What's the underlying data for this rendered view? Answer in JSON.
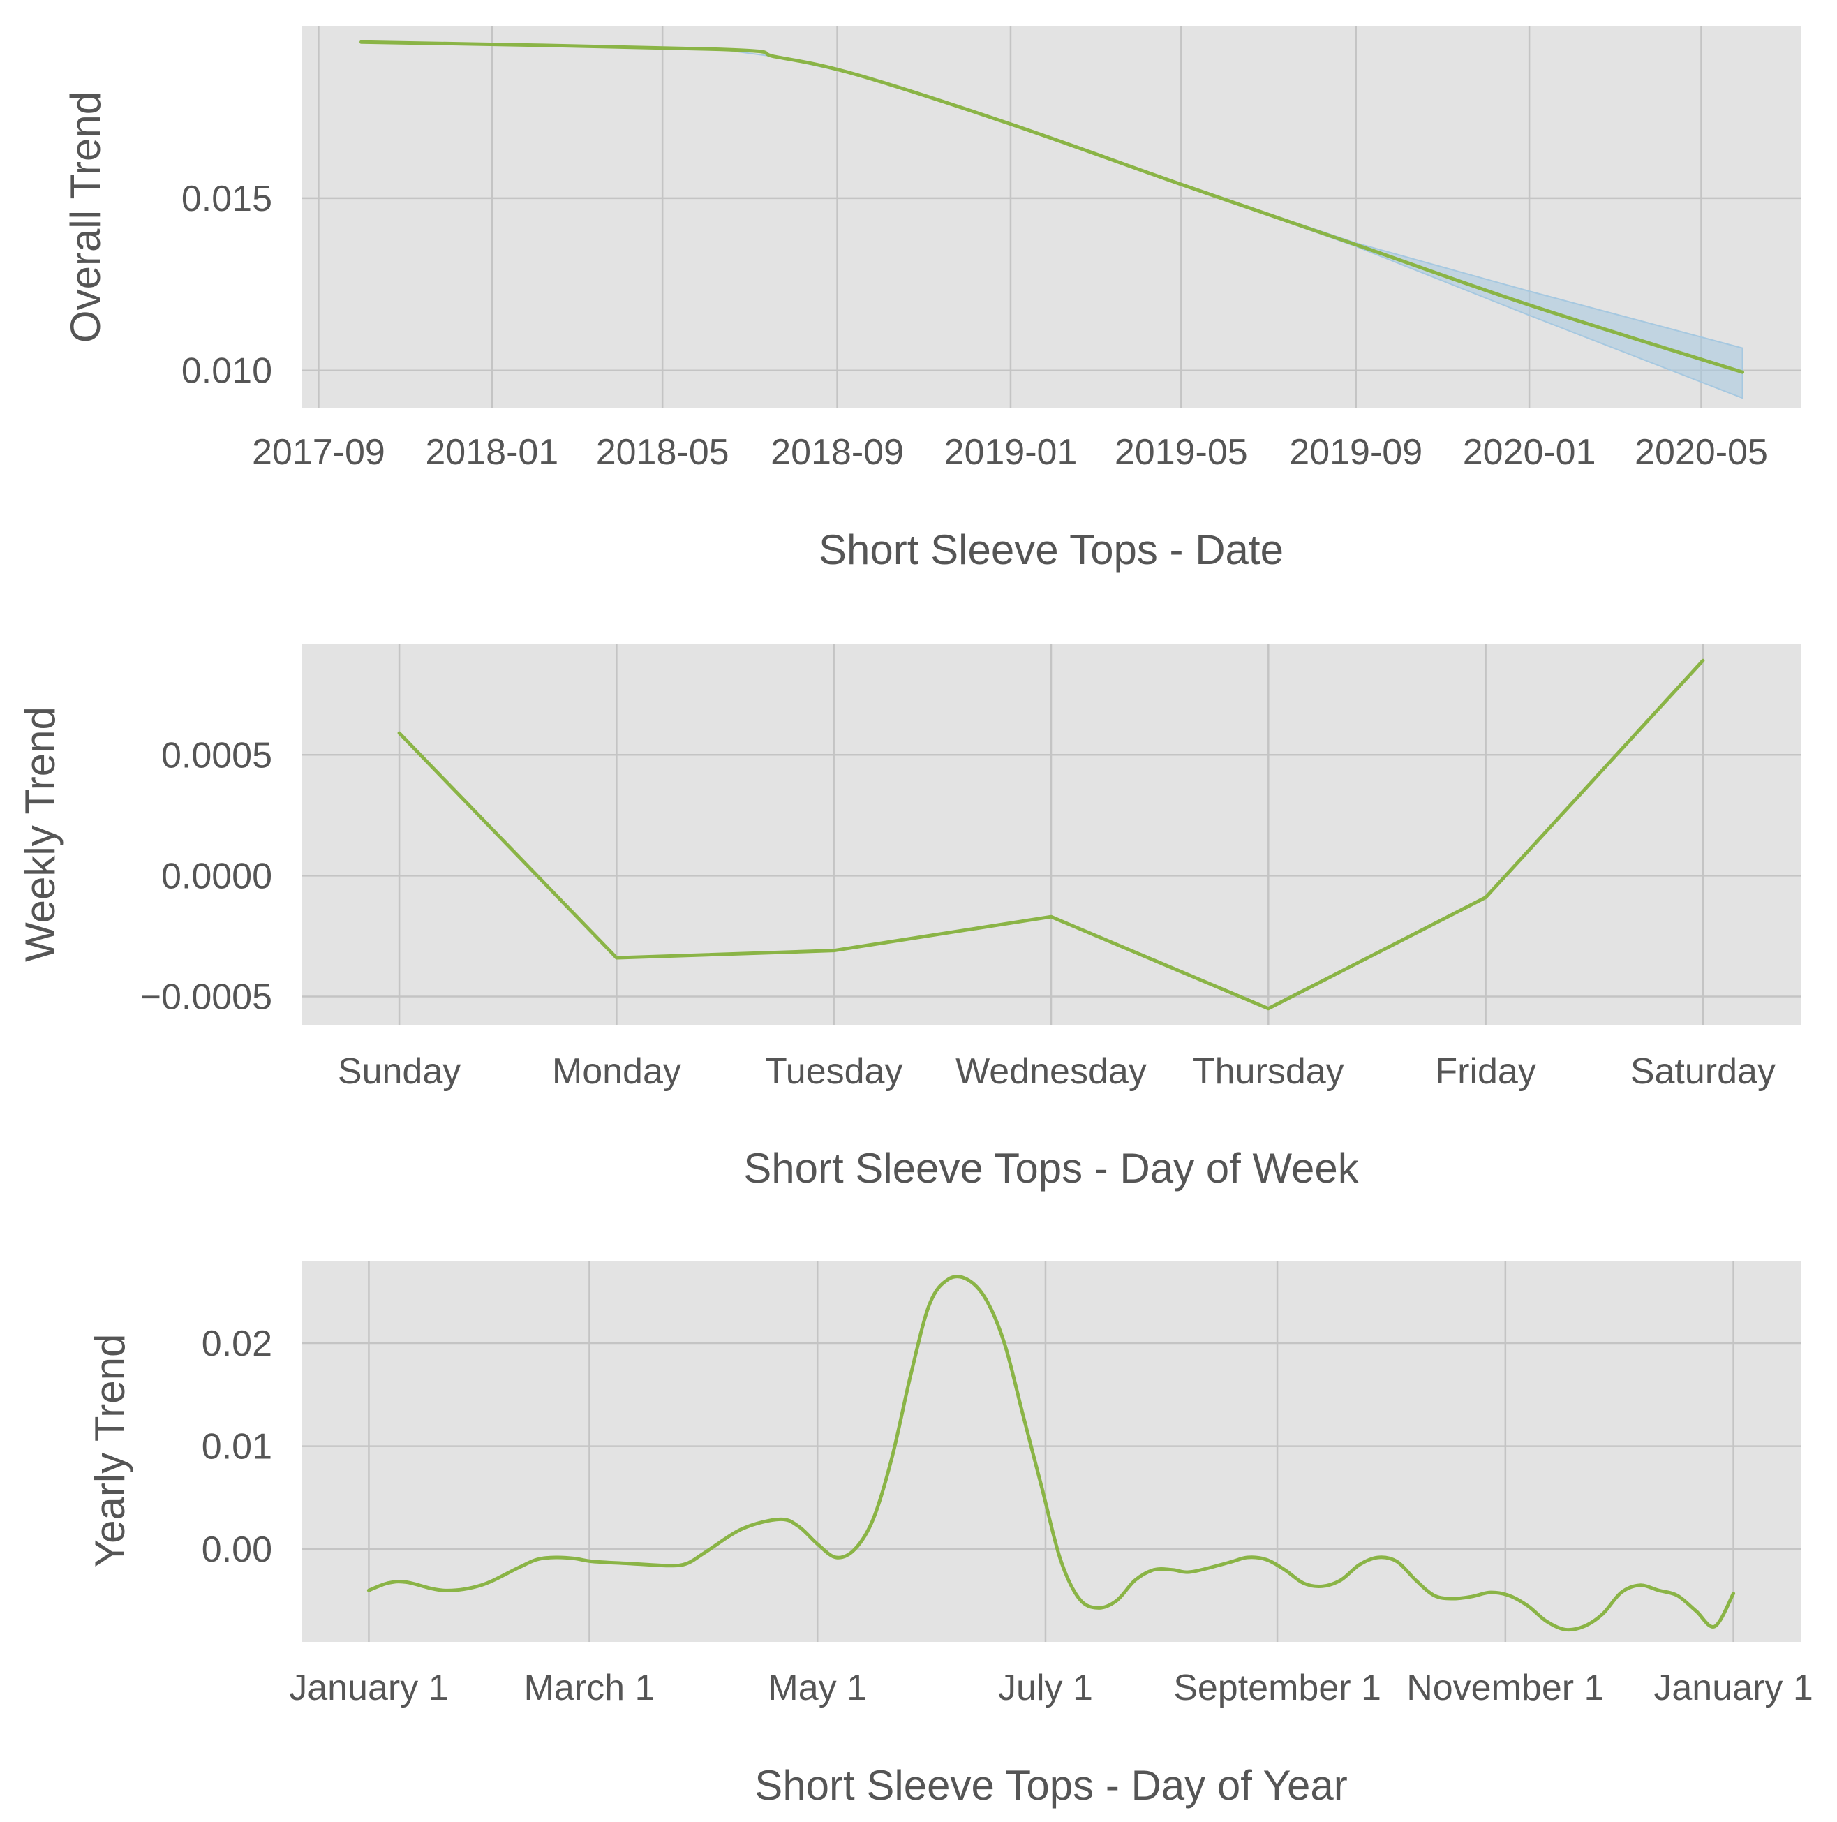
{
  "chart_data": [
    {
      "type": "line",
      "xlabel": "Short Sleeve Tops - Date",
      "ylabel": "Overall Trend",
      "x_ticks": [
        "2017-09",
        "2018-01",
        "2018-05",
        "2018-09",
        "2019-01",
        "2019-05",
        "2019-09",
        "2020-01",
        "2020-05"
      ],
      "y_ticks": [
        "0.010",
        "0.015"
      ],
      "ylim": [
        0.0089,
        0.02
      ],
      "xlim": [
        "2017-08-20",
        "2020-07-10"
      ],
      "grid": true,
      "series": [
        {
          "color": "#8ab446",
          "x": [
            "2017-10-01",
            "2018-06-10",
            "2018-07-20",
            "2018-09-15",
            "2019-01-01",
            "2019-05-01",
            "2019-09-01",
            "2020-01-01",
            "2020-05-30"
          ],
          "y": [
            0.01953,
            0.01932,
            0.0191,
            0.01858,
            0.01715,
            0.0154,
            0.01365,
            0.0119,
            0.00995
          ],
          "band_lower": [
            0.01953,
            0.01932,
            0.0191,
            0.01858,
            0.01715,
            0.0154,
            0.0136,
            0.0116,
            0.0092
          ],
          "band_upper": [
            0.01953,
            0.01932,
            0.0191,
            0.01858,
            0.01715,
            0.0154,
            0.0137,
            0.0123,
            0.01065
          ],
          "band_color": "#a6c8e0"
        }
      ]
    },
    {
      "type": "line",
      "xlabel": "Short Sleeve Tops - Day of Week",
      "ylabel": "Weekly Trend",
      "categories": [
        "Sunday",
        "Monday",
        "Tuesday",
        "Wednesday",
        "Thursday",
        "Friday",
        "Saturday"
      ],
      "y_ticks": [
        "0.0005",
        "0.0000",
        "−0.0005"
      ],
      "ylim": [
        -0.00062,
        0.00096
      ],
      "grid": true,
      "series": [
        {
          "color": "#8ab446",
          "values": [
            0.00059,
            -0.00034,
            -0.00031,
            -0.00017,
            -0.00055,
            -9e-05,
            0.00089
          ]
        }
      ]
    },
    {
      "type": "line",
      "xlabel": "Short Sleeve Tops - Day of Year",
      "ylabel": "Yearly Trend",
      "x_ticks": [
        "January 1",
        "March 1",
        "May 1",
        "July 1",
        "September 1",
        "November 1",
        "January 1"
      ],
      "x_tick_days": [
        0,
        59,
        120,
        181,
        243,
        304,
        365
      ],
      "y_ticks": [
        "0.02",
        "0.01",
        "0.00"
      ],
      "ylim": [
        -0.009,
        0.028
      ],
      "xlim": [
        -18,
        383
      ],
      "grid": true,
      "series": [
        {
          "color": "#8ab446",
          "x": [
            0,
            5,
            10,
            20,
            30,
            40,
            45,
            50,
            55,
            60,
            70,
            80,
            85,
            90,
            100,
            110,
            115,
            120,
            125,
            130,
            135,
            140,
            145,
            150,
            155,
            160,
            165,
            170,
            175,
            180,
            185,
            190,
            195,
            200,
            205,
            210,
            215,
            220,
            230,
            235,
            240,
            245,
            250,
            255,
            260,
            265,
            270,
            275,
            280,
            285,
            290,
            295,
            300,
            305,
            310,
            315,
            320,
            325,
            330,
            335,
            340,
            345,
            350,
            355,
            360,
            365
          ],
          "y": [
            -0.004,
            -0.0033,
            -0.0032,
            -0.004,
            -0.0035,
            -0.0018,
            -0.001,
            -0.0008,
            -0.0009,
            -0.0012,
            -0.0014,
            -0.0016,
            -0.0014,
            -0.0003,
            0.002,
            0.0029,
            0.0022,
            0.0005,
            -0.0008,
            0.0,
            0.003,
            0.009,
            0.017,
            0.0238,
            0.0262,
            0.0262,
            0.0243,
            0.02,
            0.013,
            0.006,
            -0.001,
            -0.0048,
            -0.0057,
            -0.005,
            -0.003,
            -0.002,
            -0.002,
            -0.0022,
            -0.0013,
            -0.0008,
            -0.001,
            -0.002,
            -0.0033,
            -0.0036,
            -0.003,
            -0.0015,
            -0.0008,
            -0.0012,
            -0.003,
            -0.0045,
            -0.0048,
            -0.0046,
            -0.0042,
            -0.0045,
            -0.0055,
            -0.007,
            -0.0078,
            -0.0075,
            -0.0063,
            -0.0042,
            -0.0035,
            -0.004,
            -0.0045,
            -0.006,
            -0.0075,
            -0.0043
          ]
        }
      ]
    }
  ]
}
